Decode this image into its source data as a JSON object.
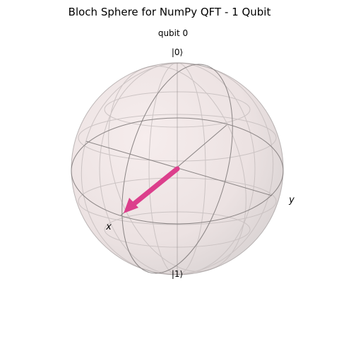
{
  "figure": {
    "title": "Bloch Sphere for NumPy QFT - 1 Qubit",
    "subtitle": "qubit 0"
  },
  "sphere": {
    "top_label": "|0⟩",
    "bottom_label": "|1⟩",
    "x_label": "x",
    "y_label": "y"
  },
  "colors": {
    "state_vector": "#dc3f8c",
    "sphere_fill": "#f3e6e6",
    "grid_line": "#808080"
  },
  "chart_data": {
    "type": "bloch-sphere",
    "title": "Bloch Sphere for NumPy QFT - 1 Qubit",
    "subtitle": "qubit 0",
    "qubits": [
      {
        "name": "qubit 0",
        "bloch_vector": [
          1,
          0,
          0
        ]
      }
    ]
  }
}
